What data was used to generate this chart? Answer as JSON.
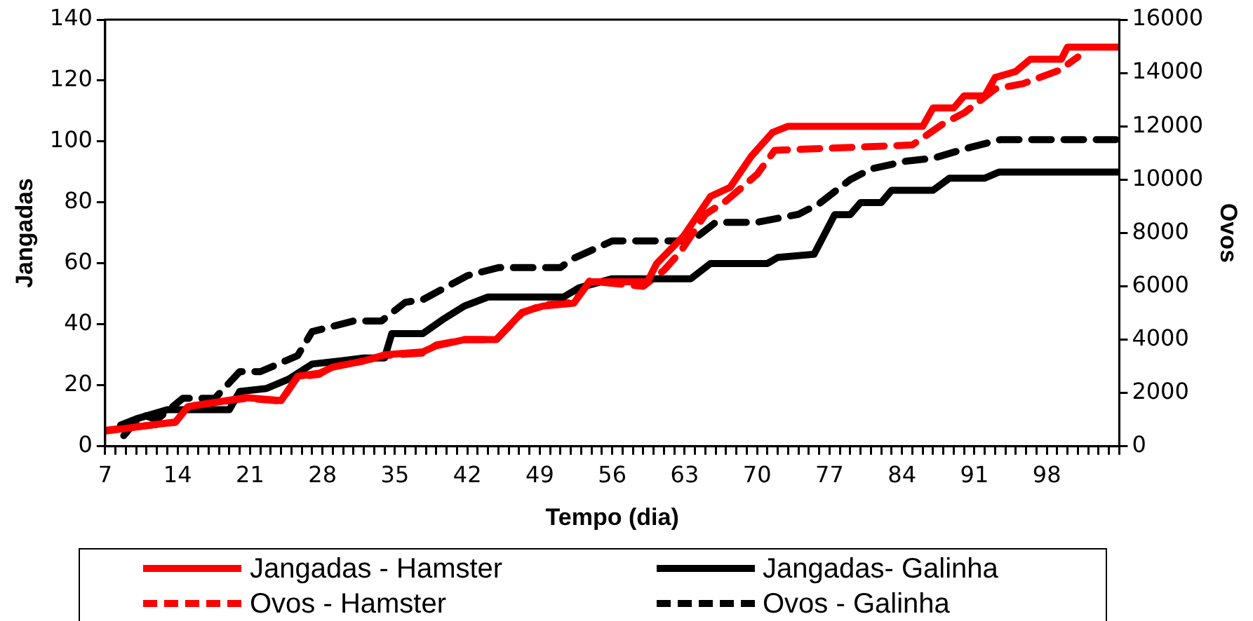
{
  "chart_data": {
    "type": "line",
    "xlabel": "Tempo (dia)",
    "ylabel": "Jangadas",
    "y2label": "Ovos",
    "legend": "bottom",
    "grid": false,
    "marker": "none",
    "xlim": [
      7,
      105
    ],
    "xticks": [
      7,
      {
        "value": 8,
        "label": null
      },
      {
        "value": 9,
        "label": null
      },
      {
        "value": 10,
        "label": null
      },
      {
        "value": 11,
        "label": null
      },
      {
        "value": 12,
        "label": null
      },
      {
        "value": 13,
        "label": null
      },
      14,
      {
        "value": 15,
        "label": null
      },
      {
        "value": 16,
        "label": null
      },
      {
        "value": 17,
        "label": null
      },
      {
        "value": 18,
        "label": null
      },
      {
        "value": 19,
        "label": null
      },
      {
        "value": 20,
        "label": null
      },
      21,
      {
        "value": 22,
        "label": null
      },
      {
        "value": 23,
        "label": null
      },
      {
        "value": 24,
        "label": null
      },
      {
        "value": 25,
        "label": null
      },
      {
        "value": 26,
        "label": null
      },
      {
        "value": 27,
        "label": null
      },
      28,
      {
        "value": 29,
        "label": null
      },
      {
        "value": 30,
        "label": null
      },
      {
        "value": 31,
        "label": null
      },
      {
        "value": 32,
        "label": null
      },
      {
        "value": 33,
        "label": null
      },
      {
        "value": 34,
        "label": null
      },
      35,
      {
        "value": 36,
        "label": null
      },
      {
        "value": 37,
        "label": null
      },
      {
        "value": 38,
        "label": null
      },
      {
        "value": 39,
        "label": null
      },
      {
        "value": 40,
        "label": null
      },
      {
        "value": 41,
        "label": null
      },
      42,
      {
        "value": 43,
        "label": null
      },
      {
        "value": 44,
        "label": null
      },
      {
        "value": 45,
        "label": null
      },
      {
        "value": 46,
        "label": null
      },
      {
        "value": 47,
        "label": null
      },
      {
        "value": 48,
        "label": null
      },
      49,
      {
        "value": 50,
        "label": null
      },
      {
        "value": 51,
        "label": null
      },
      {
        "value": 52,
        "label": null
      },
      {
        "value": 53,
        "label": null
      },
      {
        "value": 54,
        "label": null
      },
      {
        "value": 55,
        "label": null
      },
      56,
      {
        "value": 57,
        "label": null
      },
      {
        "value": 58,
        "label": null
      },
      {
        "value": 59,
        "label": null
      },
      {
        "value": 60,
        "label": null
      },
      {
        "value": 61,
        "label": null
      },
      {
        "value": 62,
        "label": null
      },
      63,
      {
        "value": 64,
        "label": null
      },
      {
        "value": 65,
        "label": null
      },
      {
        "value": 66,
        "label": null
      },
      {
        "value": 67,
        "label": null
      },
      {
        "value": 68,
        "label": null
      },
      {
        "value": 69,
        "label": null
      },
      70,
      {
        "value": 71,
        "label": null
      },
      {
        "value": 72,
        "label": null
      },
      {
        "value": 73,
        "label": null
      },
      {
        "value": 74,
        "label": null
      },
      {
        "value": 75,
        "label": null
      },
      {
        "value": 76,
        "label": null
      },
      77,
      {
        "value": 78,
        "label": null
      },
      {
        "value": 79,
        "label": null
      },
      {
        "value": 80,
        "label": null
      },
      {
        "value": 81,
        "label": null
      },
      {
        "value": 82,
        "label": null
      },
      {
        "value": 83,
        "label": null
      },
      84,
      {
        "value": 85,
        "label": null
      },
      {
        "value": 86,
        "label": null
      },
      {
        "value": 87,
        "label": null
      },
      {
        "value": 88,
        "label": null
      },
      {
        "value": 89,
        "label": null
      },
      {
        "value": 90,
        "label": null
      },
      91,
      {
        "value": 92,
        "label": null
      },
      {
        "value": 93,
        "label": null
      },
      {
        "value": 94,
        "label": null
      },
      {
        "value": 95,
        "label": null
      },
      {
        "value": 96,
        "label": null
      },
      {
        "value": 97,
        "label": null
      },
      98,
      {
        "value": 99,
        "label": null
      },
      {
        "value": 100,
        "label": null
      },
      {
        "value": 101,
        "label": null
      },
      {
        "value": 102,
        "label": null
      },
      {
        "value": 103,
        "label": null
      },
      {
        "value": 104,
        "label": null
      },
      {
        "value": 105,
        "label": null
      }
    ],
    "ylim": [
      0,
      140
    ],
    "yticks": [
      0,
      20,
      40,
      60,
      80,
      100,
      120,
      140
    ],
    "y2lim": [
      0,
      16000
    ],
    "y2ticks": [
      0,
      2000,
      4000,
      6000,
      8000,
      10000,
      12000,
      14000,
      16000
    ],
    "series": [
      {
        "name": "Jangadas - Hamster",
        "color": "#ff0000",
        "line_style": "solid",
        "x": [
          7,
          13.8,
          15,
          20.6,
          24,
          25.6,
          27.7,
          29,
          32,
          34,
          37.7,
          39,
          41.7,
          44.8,
          47.3,
          49.3,
          52.3,
          53.8,
          59.4,
          60.3,
          62.9,
          65.5,
          67.4,
          69.4,
          71.5,
          73,
          86,
          87,
          89,
          90,
          92,
          93,
          95,
          96.4,
          99.4,
          100,
          105
        ],
        "values": [
          5,
          8,
          13,
          16,
          15,
          23,
          24,
          26,
          28,
          30,
          31,
          33,
          35,
          35,
          44,
          46,
          47,
          54,
          54,
          60,
          69,
          82,
          85,
          95,
          103,
          105,
          105,
          111,
          111,
          115,
          115,
          121,
          123,
          127,
          127,
          131,
          131
        ]
      },
      {
        "name": "Jangadas- Galinha",
        "color": "#000000",
        "line_style": "solid",
        "x": [
          8.5,
          10,
          13,
          14.8,
          19,
          20,
          22.6,
          24.7,
          27,
          29.7,
          32,
          34,
          34.7,
          37.7,
          39.8,
          41.7,
          44,
          51.3,
          52.8,
          56,
          63.6,
          65.5,
          71,
          72,
          75.5,
          77.5,
          79,
          80,
          82,
          83,
          87,
          88.6,
          92,
          93.4,
          105
        ],
        "values": [
          7,
          9,
          12,
          12,
          12,
          18,
          19,
          22,
          27,
          28,
          29,
          29,
          37,
          37,
          42,
          46,
          49,
          49,
          52,
          55,
          55,
          60,
          60,
          62,
          63,
          76,
          76,
          80,
          80,
          84,
          84,
          88,
          88,
          90,
          90
        ]
      },
      {
        "name": "Ovos - Hamster",
        "color": "#ff0000",
        "line_style": "dashed",
        "axis": "y2",
        "x": [
          7,
          13.8,
          15,
          20.6,
          24,
          25.6,
          27.7,
          29,
          32,
          34,
          37.7,
          39,
          41.7,
          44.8,
          47.3,
          49.3,
          52.3,
          53.8,
          59,
          61,
          62.6,
          65,
          67,
          70,
          71.7,
          85,
          88,
          90,
          93,
          95.7,
          99.2,
          101
        ],
        "values": [
          600,
          900,
          1500,
          1800,
          1700,
          2600,
          2700,
          3000,
          3200,
          3400,
          3500,
          3800,
          4000,
          4000,
          5000,
          5300,
          5400,
          6200,
          6000,
          6600,
          7300,
          8700,
          9200,
          10200,
          11100,
          11300,
          12100,
          12500,
          13400,
          13600,
          14100,
          14600
        ]
      },
      {
        "name": "Ovos - Galinha",
        "color": "#000000",
        "line_style": "dashed",
        "axis": "y2",
        "x": [
          8.8,
          10.5,
          12,
          14.5,
          17.6,
          20,
          22,
          25.6,
          27,
          31,
          33.7,
          36,
          37.7,
          42,
          45,
          51,
          52,
          56,
          63,
          64,
          66,
          70,
          74,
          76,
          79,
          81,
          84.5,
          87,
          90.5,
          93.5,
          105
        ],
        "values": [
          400,
          1200,
          1000,
          1800,
          1800,
          2800,
          2800,
          3400,
          4300,
          4700,
          4700,
          5400,
          5500,
          6400,
          6700,
          6700,
          7000,
          7700,
          7700,
          7800,
          8400,
          8400,
          8700,
          9100,
          10000,
          10400,
          10700,
          10800,
          11200,
          11500,
          11500
        ]
      }
    ]
  }
}
